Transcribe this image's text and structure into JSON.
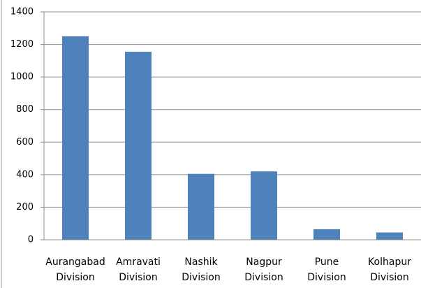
{
  "chart_data": {
    "type": "bar",
    "categories": [
      "Aurangabad Division",
      "Amravati Division",
      "Nashik Division",
      "Nagpur Division",
      "Pune Division",
      "Kolhapur Division"
    ],
    "values": [
      1250,
      1155,
      405,
      420,
      65,
      45
    ],
    "color": "#4f81bd",
    "ylim": [
      0,
      1400
    ],
    "yticks": [
      0,
      200,
      400,
      600,
      800,
      1000,
      1200,
      1400
    ],
    "grid": true
  }
}
